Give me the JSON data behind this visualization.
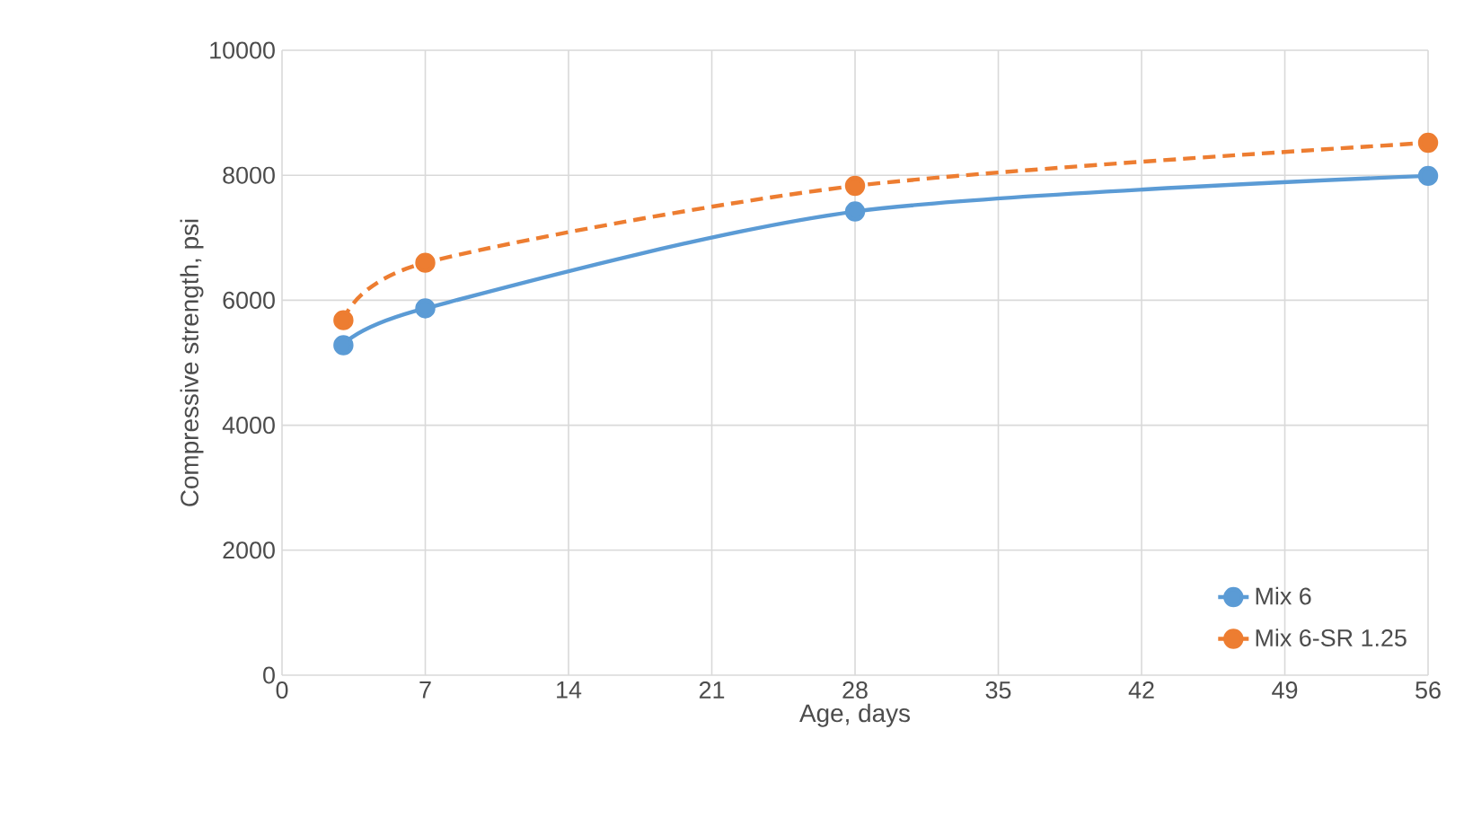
{
  "chart_data": {
    "type": "line",
    "xlabel": "Age, days",
    "ylabel": "Compressive strength, psi",
    "xlim": [
      0,
      56
    ],
    "xticks": [
      0,
      7,
      14,
      21,
      28,
      35,
      42,
      49,
      56
    ],
    "ylim": [
      0,
      10000
    ],
    "yticks": [
      0,
      2000,
      4000,
      6000,
      8000,
      10000
    ],
    "grid": true,
    "legend": "bottom right",
    "marker": "circle",
    "series": [
      {
        "name": "Mix 6",
        "color": "#5b9bd5",
        "line_style": "solid",
        "x": [
          3,
          7,
          28,
          56
        ],
        "values": [
          5280,
          5870,
          7420,
          7990
        ]
      },
      {
        "name": "Mix 6-SR 1.25",
        "color": "#ed7d31",
        "line_style": "dashed",
        "x": [
          3,
          7,
          28,
          56
        ],
        "values": [
          5680,
          6600,
          7830,
          8520
        ]
      }
    ]
  }
}
